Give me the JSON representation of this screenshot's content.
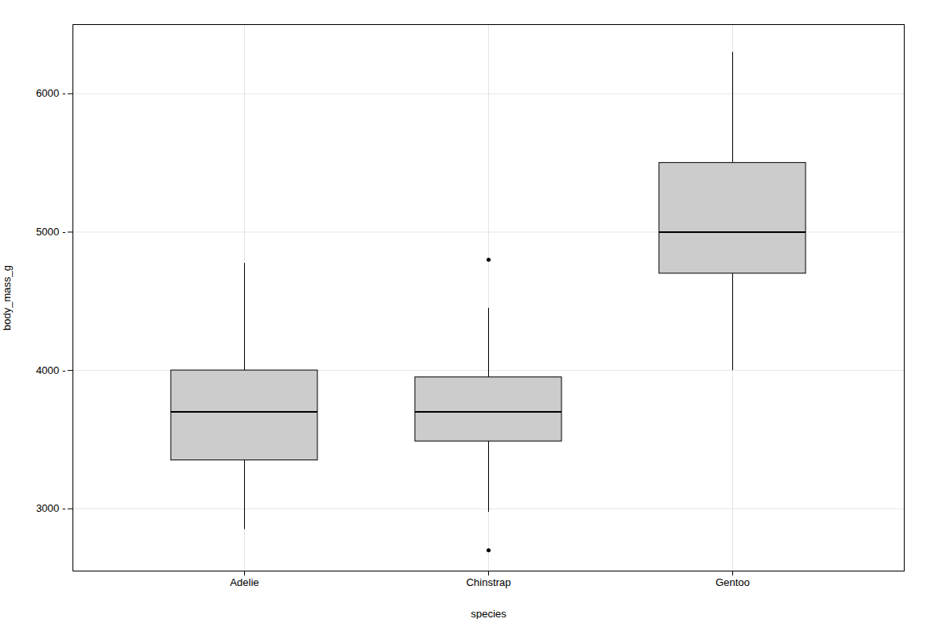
{
  "chart_data": {
    "type": "box",
    "xlabel": "species",
    "ylabel": "body_mass_g",
    "categories": [
      "Adelie",
      "Chinstrap",
      "Gentoo"
    ],
    "boxes": [
      {
        "q1": 3350,
        "median": 3700,
        "q3": 4000,
        "whisker_low": 2850,
        "whisker_high": 4775,
        "outliers": []
      },
      {
        "q1": 3487,
        "median": 3700,
        "q3": 3950,
        "whisker_low": 2975,
        "whisker_high": 4450,
        "outliers": [
          4800,
          2700
        ]
      },
      {
        "q1": 4700,
        "median": 5000,
        "q3": 5500,
        "whisker_low": 4000,
        "whisker_high": 6300,
        "outliers": []
      }
    ],
    "ylim": [
      2550,
      6500
    ],
    "yticks": [
      {
        "value": 3000,
        "label": "3000 -"
      },
      {
        "value": 4000,
        "label": "4000 -"
      },
      {
        "value": 5000,
        "label": "5000 -"
      },
      {
        "value": 6000,
        "label": "6000 -"
      }
    ],
    "grid": true
  }
}
